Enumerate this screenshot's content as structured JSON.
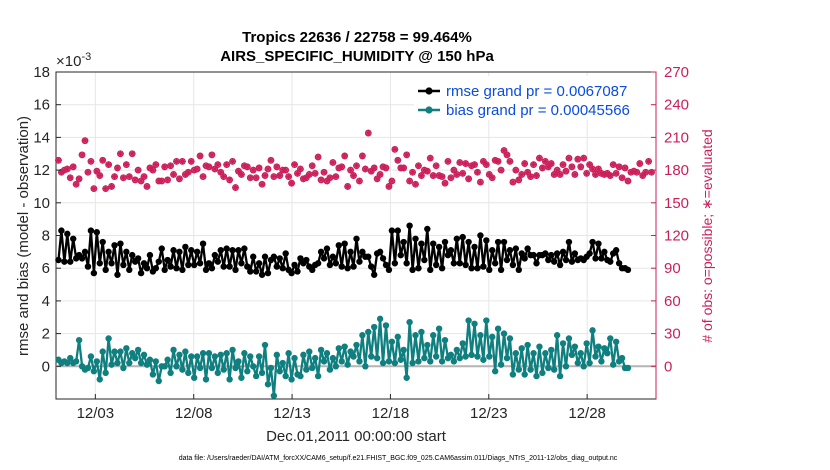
{
  "chart_data": {
    "type": "line",
    "title_line1": "Tropics 22636 / 22758 = 99.464%",
    "title_line2": "AIRS_SPECIFIC_HUMIDITY @ 150 hPa",
    "xlabel": "Dec.01,2011 00:00:00 start",
    "ylabel_left": "rmse and bias (model - observation)",
    "ylabel_right": "# of obs: o=possible; ∗=evaluated",
    "y_left_multiplier": "×10",
    "y_left_exponent": "-3",
    "ylim_left": [
      -2,
      18
    ],
    "ylim_right": [
      -30,
      270
    ],
    "xlim_days": [
      1.0,
      31.5
    ],
    "x_ticks": [
      {
        "day": 3,
        "label": "12/03"
      },
      {
        "day": 8,
        "label": "12/08"
      },
      {
        "day": 13,
        "label": "12/13"
      },
      {
        "day": 18,
        "label": "12/18"
      },
      {
        "day": 23,
        "label": "12/23"
      },
      {
        "day": 28,
        "label": "12/28"
      }
    ],
    "y_left_ticks": [
      "0",
      "2",
      "4",
      "6",
      "8",
      "10",
      "12",
      "14",
      "16",
      "18"
    ],
    "y_right_ticks": [
      "0",
      "30",
      "60",
      "90",
      "120",
      "150",
      "180",
      "210",
      "240",
      "270"
    ],
    "footnote": "data file: /Users/raeder/DAI/ATM_forcXX/CAM6_setup/f.e21.FHIST_BGC.f09_025.CAM6assim.011/Diags_NTrS_2011-12/obs_diag_output.nc",
    "legend": [
      {
        "label": "rmse grand pr = 0.0067087",
        "color": "#000000"
      },
      {
        "label": "bias grand pr = 0.00045566",
        "color": "#0f7f7f"
      }
    ],
    "colors": {
      "rmse": "#000000",
      "bias": "#0f7f7f",
      "obs": "#cc1f5a",
      "zero_line": "#b4b4b4",
      "grid": "#e6e6e6"
    },
    "series": [
      {
        "name": "rmse",
        "values": [
          6.5,
          8.3,
          6.4,
          8.1,
          6.4,
          7.8,
          6.6,
          6.8,
          6.6,
          7.0,
          6.1,
          8.3,
          5.7,
          8.2,
          6.3,
          7.6,
          5.9,
          7.0,
          6.3,
          7.4,
          5.6,
          7.5,
          6.2,
          7.0,
          5.9,
          6.8,
          6.4,
          6.6,
          5.7,
          6.3,
          6.0,
          6.8,
          5.8,
          6.0,
          6.4,
          7.2,
          5.9,
          6.5,
          6.1,
          7.1,
          6.0,
          7.0,
          5.9,
          7.3,
          6.2,
          7.1,
          6.2,
          7.0,
          6.3,
          7.5,
          5.9,
          6.3,
          6.0,
          6.8,
          6.4,
          7.1,
          6.1,
          7.2,
          6.1,
          7.1,
          5.9,
          7.1,
          6.3,
          7.2,
          6.1,
          5.8,
          6.7,
          5.8,
          6.3,
          5.6,
          6.7,
          5.7,
          6.5,
          6.7,
          6.1,
          6.6,
          6.0,
          6.9,
          5.9,
          5.7,
          6.2,
          5.8,
          6.6,
          6.3,
          6.5,
          6.1,
          5.9,
          6.2,
          6.3,
          7.0,
          6.6,
          7.2,
          6.2,
          6.7,
          6.3,
          7.4,
          6.1,
          7.5,
          6.0,
          7.0,
          6.1,
          7.8,
          6.4,
          7.0,
          6.7,
          6.7,
          6.1,
          5.6,
          6.9,
          7.0,
          6.6,
          6.2,
          5.9,
          8.3,
          6.3,
          8.3,
          6.8,
          7.6,
          6.3,
          8.6,
          5.9,
          7.8,
          6.0,
          7.5,
          6.5,
          8.4,
          5.9,
          7.5,
          6.2,
          7.3,
          6.0,
          7.6,
          6.8,
          7.1,
          6.3,
          7.8,
          6.3,
          7.9,
          6.2,
          7.6,
          6.0,
          7.3,
          6.0,
          8.0,
          6.1,
          7.7,
          5.9,
          7.1,
          6.3,
          7.6,
          5.9,
          7.6,
          6.5,
          7.1,
          6.2,
          7.2,
          5.9,
          6.9,
          6.6,
          7.2,
          6.8,
          6.8,
          6.3,
          6.8,
          6.8,
          6.9,
          6.5,
          6.8,
          6.4,
          6.9,
          6.2,
          7.0,
          6.5,
          7.6,
          6.4,
          6.9,
          6.5,
          6.6,
          6.5,
          6.7,
          6.9,
          7.6,
          6.6,
          7.5,
          6.6,
          7.0,
          6.5,
          6.4,
          6.9,
          7.1,
          6.3,
          6.0,
          6.0,
          5.9
        ]
      },
      {
        "name": "bias",
        "values": [
          0.4,
          0.2,
          0.3,
          0.2,
          0.5,
          0.2,
          0.3,
          1.6,
          0.0,
          -0.2,
          -0.1,
          0.6,
          -0.3,
          0.3,
          -0.8,
          0.9,
          -0.4,
          1.7,
          0.1,
          0.9,
          0.2,
          0.9,
          -0.1,
          1.1,
          0.2,
          0.8,
          0.5,
          1.0,
          0.2,
          0.7,
          0.1,
          0.4,
          -0.5,
          0.3,
          -0.9,
          0.0,
          0.0,
          0.4,
          -0.4,
          1.0,
          0.0,
          0.7,
          -0.2,
          0.9,
          -0.4,
          0.6,
          -0.7,
          0.6,
          -0.1,
          0.8,
          -0.8,
          0.8,
          -0.1,
          0.6,
          -0.4,
          0.7,
          -0.2,
          0.8,
          -0.8,
          1.0,
          -0.1,
          0.3,
          -0.7,
          0.8,
          -0.3,
          0.6,
          0.0,
          -0.6,
          0.6,
          -0.4,
          1.3,
          -1.1,
          -0.1,
          -1.8,
          0.7,
          -0.3,
          0.2,
          -0.6,
          0.8,
          -0.8,
          0.5,
          -0.5,
          -0.6,
          0.7,
          -0.2,
          0.9,
          -0.1,
          0.5,
          -0.6,
          1.0,
          0.3,
          0.8,
          -0.2,
          0.5,
          0.0,
          1.1,
          0.3,
          1.2,
          0.1,
          0.9,
          0.6,
          1.3,
          0.3,
          1.9,
          0.0,
          2.1,
          0.6,
          2.4,
          0.5,
          2.9,
          0.2,
          2.5,
          0.3,
          1.5,
          0.2,
          1.8,
          0.4,
          1.0,
          -0.7,
          2.7,
          0.2,
          1.9,
          0.3,
          2.1,
          0.5,
          1.3,
          0.3,
          1.9,
          0.6,
          2.3,
          0.3,
          1.6,
          0.5,
          0.7,
          0.3,
          1.0,
          0.5,
          1.4,
          0.6,
          2.8,
          0.7,
          2.6,
          0.6,
          1.9,
          0.4,
          2.8,
          0.6,
          1.8,
          -0.3,
          2.3,
          0.1,
          2.0,
          0.5,
          1.7,
          -0.5,
          0.8,
          -0.2,
          1.1,
          -0.5,
          1.3,
          -0.2,
          0.8,
          -0.6,
          1.2,
          -0.4,
          0.8,
          -0.1,
          1.0,
          -0.2,
          1.9,
          -0.6,
          1.4,
          0.0,
          1.7,
          0.7,
          1.2,
          0.2,
          0.8,
          0.0,
          1.4,
          0.2,
          2.2,
          0.6,
          1.2,
          0.3,
          1.1,
          0.8,
          1.7,
          0.1,
          1.5,
          0.3,
          0.5,
          -0.1,
          -0.1
        ]
      },
      {
        "name": "obs_possible",
        "values": [
          189,
          178,
          180,
          181,
          173,
          183,
          167,
          172,
          194,
          207,
          178,
          188,
          163,
          179,
          175,
          189,
          163,
          185,
          165,
          174,
          182,
          195,
          173,
          185,
          174,
          195,
          171,
          180,
          170,
          174,
          165,
          182,
          180,
          185,
          170,
          170,
          183,
          171,
          184,
          176,
          188,
          172,
          188,
          176,
          178,
          188,
          180,
          181,
          193,
          174,
          184,
          183,
          194,
          181,
          185,
          178,
          174,
          185,
          171,
          188,
          164,
          179,
          176,
          184,
          183,
          173,
          180,
          173,
          182,
          167,
          175,
          181,
          189,
          174,
          183,
          175,
          180,
          180,
          174,
          168,
          185,
          177,
          181,
          172,
          173,
          176,
          184,
          177,
          192,
          171,
          178,
          170,
          173,
          187,
          174,
          182,
          183,
          193,
          165,
          180,
          175,
          184,
          170,
          193,
          181,
          214,
          179,
          182,
          172,
          176,
          183,
          182,
          165,
          170,
          199,
          189,
          182,
          182,
          194,
          170,
          178,
          167,
          184,
          175,
          180,
          179,
          191,
          175,
          184,
          175,
          174,
          168,
          188,
          173,
          180,
          176,
          187,
          177,
          186,
          172,
          184,
          185,
          178,
          169,
          188,
          185,
          176,
          173,
          189,
          188,
          180,
          198,
          194,
          188,
          169,
          180,
          171,
          176,
          186,
          178,
          174,
          185,
          175,
          191,
          182,
          188,
          183,
          186,
          176,
          180,
          176,
          185,
          179,
          191,
          183,
          176,
          190,
          183,
          191,
          177,
          185,
          181,
          176,
          181,
          177,
          176,
          177,
          175,
          185,
          177,
          183,
          173,
          182,
          170,
          178,
          179,
          178,
          186,
          175,
          178,
          188,
          178
        ]
      },
      {
        "name": "obs_evaluated",
        "values": [
          189,
          178,
          180,
          181,
          173,
          183,
          167,
          172,
          194,
          207,
          178,
          188,
          163,
          179,
          175,
          189,
          163,
          185,
          165,
          174,
          182,
          195,
          173,
          185,
          174,
          195,
          171,
          180,
          170,
          174,
          165,
          182,
          180,
          185,
          170,
          170,
          183,
          171,
          184,
          176,
          188,
          172,
          188,
          176,
          178,
          188,
          180,
          181,
          193,
          174,
          184,
          183,
          194,
          181,
          185,
          178,
          174,
          185,
          171,
          188,
          164,
          179,
          176,
          184,
          183,
          173,
          180,
          173,
          182,
          167,
          175,
          181,
          189,
          174,
          183,
          175,
          180,
          180,
          174,
          168,
          185,
          177,
          181,
          172,
          173,
          176,
          184,
          177,
          192,
          171,
          178,
          170,
          173,
          187,
          174,
          182,
          183,
          193,
          165,
          180,
          175,
          184,
          170,
          193,
          181,
          214,
          179,
          182,
          172,
          176,
          183,
          182,
          165,
          170,
          199,
          189,
          182,
          182,
          194,
          170,
          178,
          167,
          184,
          175,
          180,
          179,
          191,
          175,
          184,
          175,
          174,
          168,
          188,
          173,
          180,
          176,
          187,
          177,
          186,
          172,
          184,
          185,
          178,
          169,
          188,
          185,
          176,
          173,
          189,
          188,
          180,
          198,
          194,
          188,
          169,
          180,
          171,
          176,
          186,
          178,
          174,
          185,
          175,
          191,
          182,
          188,
          183,
          186,
          176,
          180,
          176,
          185,
          179,
          191,
          183,
          176,
          190,
          183,
          191,
          177,
          185,
          181,
          176,
          181,
          177,
          176,
          177,
          175,
          185,
          177,
          183,
          173,
          182,
          170,
          178,
          179,
          178,
          186,
          175,
          178,
          188,
          178
        ]
      }
    ]
  }
}
